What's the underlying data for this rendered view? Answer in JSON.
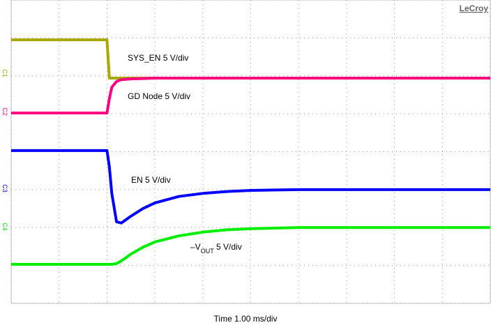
{
  "chart_data": {
    "type": "line",
    "brand": "LeCroy",
    "x_label": "Time 1.00 ms/div",
    "xlim": [
      0,
      10
    ],
    "ylim": [
      0,
      8
    ],
    "xticks": [
      0,
      1,
      2,
      3,
      4,
      5,
      6,
      7,
      8,
      9,
      10
    ],
    "yticks": [
      0,
      1,
      2,
      3,
      4,
      5,
      6,
      7,
      8
    ],
    "grid": true,
    "x": [
      0,
      1,
      2,
      2.05,
      2.1,
      2.2,
      2.3,
      2.5,
      2.75,
      3,
      3.5,
      4,
      4.5,
      5,
      6,
      7,
      8,
      9,
      10
    ],
    "series": [
      {
        "channel": "C1",
        "label_parts": [
          "SYS_EN 5 V/div"
        ],
        "color": "#a8a800",
        "values": [
          6.95,
          6.95,
          6.95,
          5.94,
          5.94,
          5.94,
          5.94,
          5.94,
          5.94,
          5.94,
          5.94,
          5.94,
          5.94,
          5.94,
          5.94,
          5.94,
          5.94,
          5.94,
          5.94
        ]
      },
      {
        "channel": "C2",
        "label_parts": [
          "GD Node 5 V/div"
        ],
        "color": "#ff0080",
        "values": [
          5.02,
          5.02,
          5.02,
          5.4,
          5.7,
          5.85,
          5.9,
          5.92,
          5.93,
          5.94,
          5.94,
          5.94,
          5.94,
          5.94,
          5.94,
          5.94,
          5.94,
          5.94,
          5.94
        ]
      },
      {
        "channel": "C3",
        "label_parts": [
          "EN 5 V/div"
        ],
        "color": "#0000ff",
        "values": [
          4.03,
          4.03,
          4.03,
          3.6,
          2.9,
          2.15,
          2.12,
          2.3,
          2.5,
          2.65,
          2.82,
          2.9,
          2.95,
          2.98,
          3.0,
          3.0,
          3.0,
          3.0,
          3.0
        ]
      },
      {
        "channel": "C4",
        "label_parts": [
          "–V",
          "OUT",
          " 5 V/div"
        ],
        "color": "#00ee00",
        "values": [
          1.03,
          1.03,
          1.03,
          1.03,
          1.03,
          1.05,
          1.12,
          1.3,
          1.48,
          1.62,
          1.78,
          1.88,
          1.94,
          1.97,
          2.0,
          2.0,
          2.0,
          2.0,
          2.0
        ]
      }
    ]
  }
}
